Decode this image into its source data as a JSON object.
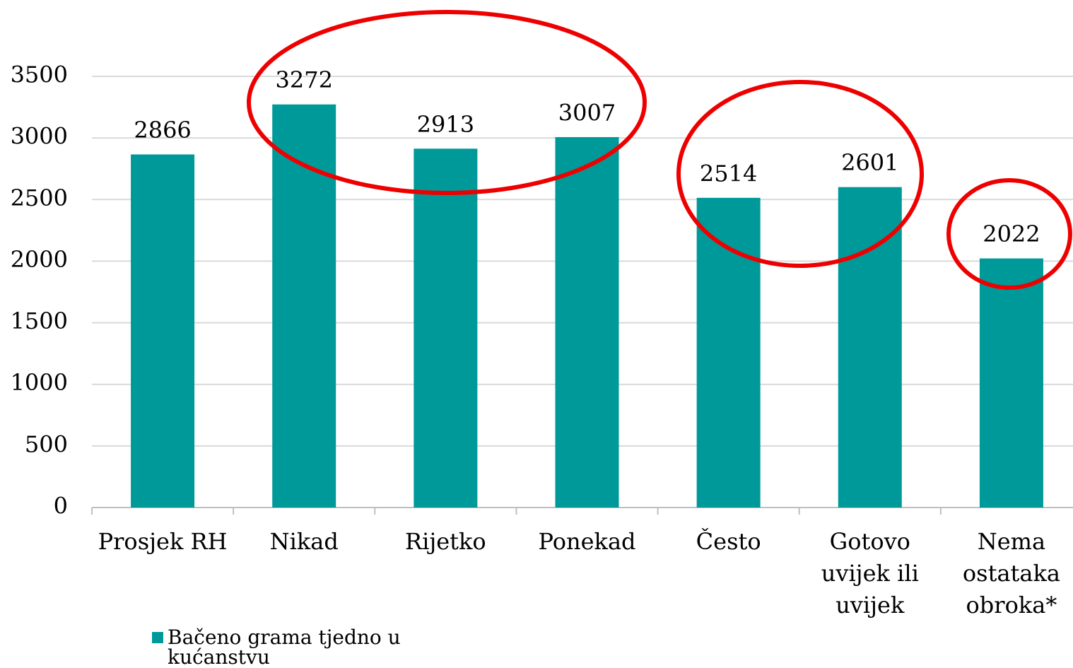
{
  "chart_data": {
    "type": "bar",
    "categories": [
      "Prosjek RH",
      "Nikad",
      "Rijetko",
      "Ponekad",
      "Često",
      "Gotovo uvijek ili uvijek",
      "Nema ostataka obroka*"
    ],
    "series": [
      {
        "name": "Bačeno grama tjedno u kućanstvu",
        "color": "#009999",
        "values": [
          2866,
          3272,
          2913,
          3007,
          2514,
          2601,
          2022
        ]
      }
    ],
    "ylim": [
      0,
      3500
    ],
    "yticks": [
      0,
      500,
      1000,
      1500,
      2000,
      2500,
      3000,
      3500
    ],
    "grid": true,
    "legend": "bottom"
  }
}
